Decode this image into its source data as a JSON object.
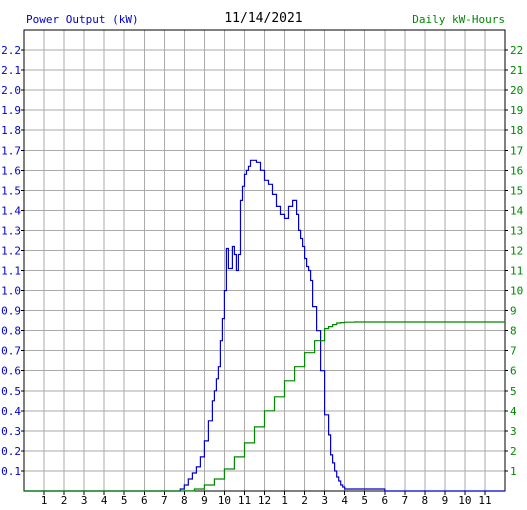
{
  "header": {
    "left_label": "Power Output (kW)",
    "date": "11/14/2021",
    "right_label": "Daily kW-Hours"
  },
  "colors": {
    "power": "#0000cc",
    "energy": "#008800",
    "grid": "#aaaaaa",
    "axis": "#000000"
  },
  "chart_data": {
    "type": "line",
    "xlabel": "",
    "x_ticks": [
      "1",
      "2",
      "3",
      "4",
      "5",
      "6",
      "7",
      "8",
      "9",
      "10",
      "11",
      "12",
      "1",
      "2",
      "3",
      "4",
      "5",
      "6",
      "7",
      "8",
      "9",
      "10",
      "11"
    ],
    "xlim": [
      0,
      24
    ],
    "y_left": {
      "label": "Power Output (kW)",
      "ylim": [
        0,
        2.3
      ],
      "ticks": [
        "0.1",
        "0.2",
        "0.3",
        "0.4",
        "0.5",
        "0.6",
        "0.7",
        "0.8",
        "0.9",
        "1.0",
        "1.1",
        "1.2",
        "1.3",
        "1.4",
        "1.5",
        "1.6",
        "1.7",
        "1.8",
        "1.9",
        "2.0",
        "2.1",
        "2.2"
      ]
    },
    "y_right": {
      "label": "Daily kW-Hours",
      "ylim": [
        0,
        23
      ],
      "ticks": [
        "1",
        "2",
        "3",
        "4",
        "5",
        "6",
        "7",
        "8",
        "9",
        "10",
        "11",
        "12",
        "13",
        "14",
        "15",
        "16",
        "17",
        "18",
        "19",
        "20",
        "21",
        "22"
      ]
    },
    "grid": true,
    "series": [
      {
        "name": "Power Output (kW)",
        "axis": "left",
        "x": [
          0,
          7.7,
          7.8,
          8.0,
          8.2,
          8.4,
          8.6,
          8.8,
          9.0,
          9.2,
          9.4,
          9.5,
          9.6,
          9.7,
          9.8,
          9.9,
          10.0,
          10.1,
          10.2,
          10.3,
          10.4,
          10.5,
          10.6,
          10.7,
          10.8,
          10.9,
          11.0,
          11.1,
          11.2,
          11.3,
          11.4,
          11.6,
          11.8,
          12.0,
          12.2,
          12.4,
          12.6,
          12.8,
          13.0,
          13.2,
          13.4,
          13.6,
          13.7,
          13.8,
          13.9,
          14.0,
          14.1,
          14.2,
          14.3,
          14.4,
          14.6,
          14.8,
          15.0,
          15.2,
          15.3,
          15.4,
          15.5,
          15.6,
          15.7,
          15.8,
          15.9,
          16.0,
          16.2,
          16.4,
          16.6,
          16.8,
          17.0,
          17.5,
          18.0,
          18.1,
          24
        ],
        "y": [
          0,
          0,
          0.01,
          0.03,
          0.06,
          0.09,
          0.12,
          0.17,
          0.25,
          0.35,
          0.45,
          0.5,
          0.56,
          0.62,
          0.75,
          0.86,
          1.0,
          1.21,
          1.11,
          1.11,
          1.22,
          1.18,
          1.1,
          1.18,
          1.45,
          1.52,
          1.58,
          1.6,
          1.62,
          1.65,
          1.65,
          1.64,
          1.6,
          1.55,
          1.53,
          1.48,
          1.42,
          1.38,
          1.36,
          1.42,
          1.45,
          1.38,
          1.3,
          1.26,
          1.22,
          1.16,
          1.12,
          1.1,
          1.05,
          0.92,
          0.8,
          0.6,
          0.38,
          0.28,
          0.18,
          0.14,
          0.1,
          0.07,
          0.05,
          0.03,
          0.02,
          0.01,
          0.01,
          0.01,
          0.01,
          0.01,
          0.01,
          0.01,
          0.0,
          0.0,
          0.0
        ]
      },
      {
        "name": "Daily kW-Hours",
        "axis": "right",
        "x": [
          0,
          7.8,
          8.0,
          8.5,
          9.0,
          9.5,
          10.0,
          10.5,
          11.0,
          11.5,
          12.0,
          12.5,
          13.0,
          13.5,
          14.0,
          14.5,
          15.0,
          15.2,
          15.4,
          15.6,
          15.8,
          16.0,
          16.5,
          17.0,
          18.0,
          24
        ],
        "y": [
          0,
          0,
          0.01,
          0.1,
          0.3,
          0.6,
          1.1,
          1.7,
          2.4,
          3.2,
          4.0,
          4.7,
          5.5,
          6.2,
          6.9,
          7.5,
          8.1,
          8.2,
          8.3,
          8.38,
          8.4,
          8.42,
          8.43,
          8.43,
          8.43,
          8.43
        ]
      }
    ]
  }
}
